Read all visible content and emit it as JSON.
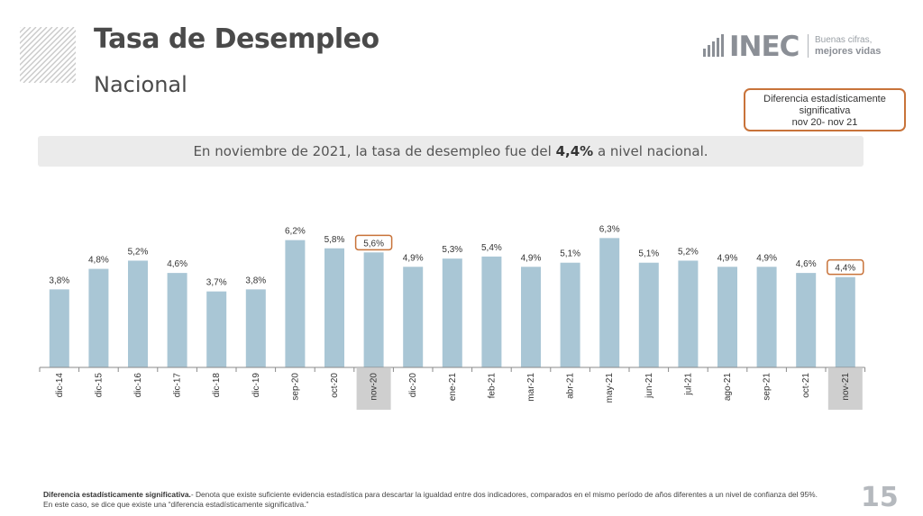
{
  "slide": {
    "title": "Tasa de Desempleo",
    "subtitle": "Nacional",
    "logo": {
      "mark": "INEC",
      "tagline_1": "Buenas cifras,",
      "tagline_2": "mejores vidas"
    },
    "significance_box": {
      "line_1": "Diferencia estadísticamente",
      "line_2": "significativa",
      "line_3": "nov 20- nov 21"
    },
    "summary": {
      "before": "En noviembre  de 2021, la tasa de desempleo fue del ",
      "highlight": "4,4%",
      "after": " a nivel nacional."
    },
    "footnote": {
      "term": "Diferencia estadísticamente significativa.",
      "text": "- Denota que existe suficiente evidencia estadística para descartar la igualdad entre dos indicadores, comparados en el mismo período de años diferentes a un nivel de confianza del 95%. En este caso, se dice que existe una “diferencia estadísticamente significativa.”"
    },
    "page_number": "15"
  },
  "chart_data": {
    "type": "bar",
    "categories": [
      "dic-14",
      "dic-15",
      "dic-16",
      "dic-17",
      "dic-18",
      "dic-19",
      "sep-20",
      "oct-20",
      "nov-20",
      "dic-20",
      "ene-21",
      "feb-21",
      "mar-21",
      "abr-21",
      "may-21",
      "jun-21",
      "jul-21",
      "ago-21",
      "sep-21",
      "oct-21",
      "nov-21"
    ],
    "values": [
      3.8,
      4.8,
      5.2,
      4.6,
      3.7,
      3.8,
      6.2,
      5.8,
      5.6,
      4.9,
      5.3,
      5.4,
      4.9,
      5.1,
      6.3,
      5.1,
      5.2,
      4.9,
      4.9,
      4.6,
      4.4
    ],
    "labels": [
      "3,8%",
      "4,8%",
      "5,2%",
      "4,6%",
      "3,7%",
      "3,8%",
      "6,2%",
      "5,8%",
      "5,6%",
      "4,9%",
      "5,3%",
      "5,4%",
      "4,9%",
      "5,1%",
      "6,3%",
      "5,1%",
      "5,2%",
      "4,9%",
      "4,9%",
      "4,6%",
      "4,4%"
    ],
    "highlighted": [
      "nov-20",
      "nov-21"
    ],
    "ylim": [
      0,
      7
    ],
    "grid": false,
    "colors": {
      "bar": "#a9c6d5",
      "highlight_border": "#c8733a",
      "highlight_tick_bg": "#cfcfcf",
      "axis": "#8a8a8a"
    }
  }
}
